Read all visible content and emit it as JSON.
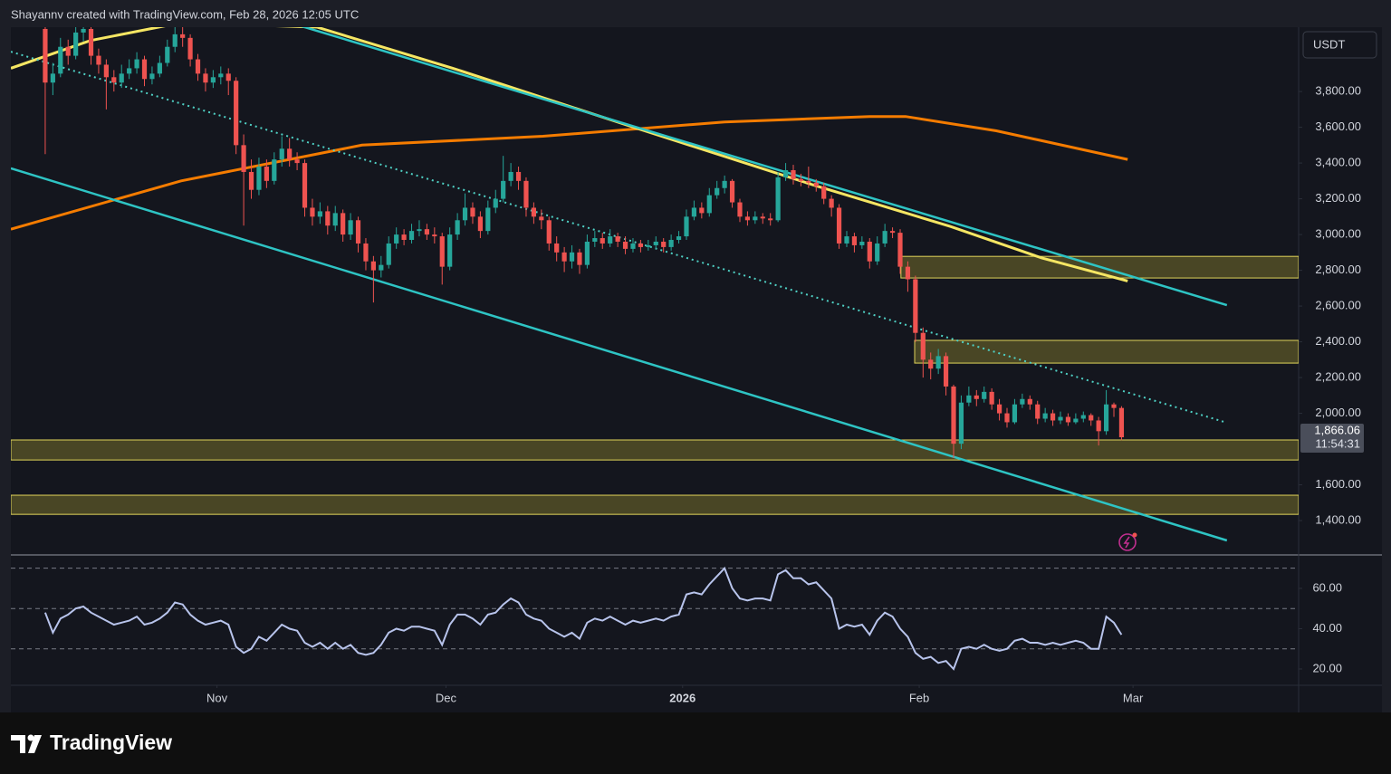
{
  "chart_data": {
    "type": "candlestick",
    "title": "Shayannv created with TradingView.com, Feb 28, 2026 12:05 UTC",
    "currency": "USDT",
    "brand": "TradingView",
    "up_color": "#26a69a",
    "down_color": "#ef5350",
    "open": [
      4150,
      3850,
      3900,
      4050,
      4000,
      4130,
      4150,
      4000,
      3950,
      3880,
      3850,
      3900,
      3930,
      3980,
      3870,
      3900,
      3960,
      4050,
      4120,
      4100,
      3980,
      3900,
      3850,
      3880,
      3900,
      3860,
      3500,
      3350,
      3250,
      3380,
      3300,
      3420,
      3480,
      3420,
      3400,
      3150,
      3100,
      3130,
      3050,
      3120,
      3000,
      3080,
      2950,
      2850,
      2800,
      2830,
      2950,
      3000,
      2970,
      3020,
      3030,
      3000,
      2990,
      2820,
      3000,
      3080,
      3150,
      3100,
      3020,
      3150,
      3200,
      3300,
      3350,
      3300,
      3150,
      3100,
      3080,
      2950,
      2900,
      2850,
      2900,
      2830,
      2960,
      2980,
      2950,
      2990,
      2960,
      2920,
      2950,
      2930,
      2940,
      2960,
      2930,
      2970,
      2990,
      3100,
      3150,
      3120,
      3220,
      3260,
      3300,
      3180,
      3100,
      3080,
      3100,
      3090,
      3080,
      3320,
      3360,
      3310,
      3300,
      3290,
      3270,
      3200,
      3150,
      2950,
      2990,
      2940,
      2960,
      2850,
      2950,
      3020,
      3010,
      2820,
      2750,
      2450,
      2300,
      2250,
      2320,
      2150,
      1830,
      2060,
      2100,
      2080,
      2120,
      2050,
      2000,
      1950,
      2050,
      2080,
      2050,
      1970,
      2000,
      1960,
      1980,
      1950,
      1970,
      1990,
      1960,
      1900,
      2050,
      2030
    ],
    "high": [
      4200,
      3960,
      4100,
      4090,
      4180,
      4210,
      4170,
      4040,
      3980,
      3920,
      3950,
      3980,
      4020,
      4000,
      3940,
      4000,
      4090,
      4170,
      4160,
      4120,
      4010,
      3930,
      3920,
      3940,
      3930,
      3880,
      3560,
      3420,
      3430,
      3420,
      3460,
      3550,
      3540,
      3460,
      3420,
      3200,
      3180,
      3160,
      3160,
      3140,
      3120,
      3100,
      2980,
      2880,
      2880,
      2990,
      3040,
      3030,
      3060,
      3080,
      3060,
      3040,
      3010,
      3040,
      3120,
      3230,
      3180,
      3130,
      3190,
      3250,
      3440,
      3400,
      3380,
      3320,
      3180,
      3140,
      3100,
      2990,
      2930,
      2940,
      2920,
      3000,
      3020,
      3010,
      3030,
      3010,
      2990,
      2980,
      2970,
      2970,
      2990,
      2980,
      3000,
      3020,
      3140,
      3190,
      3180,
      3260,
      3300,
      3330,
      3310,
      3200,
      3130,
      3130,
      3120,
      3120,
      3350,
      3400,
      3390,
      3340,
      3380,
      3310,
      3290,
      3220,
      3170,
      3020,
      3010,
      2990,
      2980,
      2990,
      3060,
      3040,
      3030,
      2850,
      2770,
      2480,
      2340,
      2360,
      2340,
      2160,
      2100,
      2150,
      2130,
      2150,
      2140,
      2080,
      2030,
      2080,
      2110,
      2100,
      2070,
      2030,
      2020,
      2010,
      2000,
      2000,
      2010,
      2000,
      1980,
      2130,
      2060,
      2040
    ],
    "low": [
      3450,
      3780,
      3880,
      3950,
      3980,
      4080,
      3950,
      3900,
      3700,
      3800,
      3820,
      3870,
      3900,
      3830,
      3840,
      3880,
      3940,
      4020,
      4050,
      3940,
      3860,
      3800,
      3820,
      3840,
      3780,
      3450,
      3050,
      3200,
      3220,
      3260,
      3280,
      3380,
      3380,
      3360,
      3100,
      3050,
      3060,
      3000,
      3020,
      2960,
      2970,
      2900,
      2800,
      2620,
      2760,
      2810,
      2920,
      2940,
      2950,
      2990,
      2970,
      2950,
      2720,
      2800,
      2970,
      3050,
      3060,
      2980,
      3000,
      3120,
      3180,
      3270,
      3250,
      3100,
      3060,
      3030,
      2910,
      2850,
      2790,
      2810,
      2780,
      2810,
      2930,
      2920,
      2930,
      2930,
      2890,
      2900,
      2900,
      2910,
      2920,
      2900,
      2910,
      2950,
      2970,
      3080,
      3090,
      3100,
      3200,
      3230,
      3150,
      3070,
      3050,
      3060,
      3060,
      3050,
      3070,
      3300,
      3280,
      3270,
      3260,
      3240,
      3170,
      3100,
      2920,
      2930,
      2900,
      2920,
      2810,
      2830,
      2930,
      2980,
      2780,
      2680,
      2400,
      2200,
      2190,
      2220,
      2100,
      1750,
      1800,
      2040,
      2040,
      2060,
      2020,
      1960,
      1920,
      1940,
      2030,
      2020,
      1940,
      1950,
      1930,
      1940,
      1930,
      1940,
      1950,
      1930,
      1820,
      1880,
      1980,
      1850
    ],
    "close": [
      3850,
      3900,
      4050,
      4000,
      4130,
      4150,
      4000,
      3950,
      3880,
      3850,
      3900,
      3930,
      3980,
      3870,
      3900,
      3960,
      4050,
      4120,
      4100,
      3980,
      3900,
      3850,
      3880,
      3900,
      3860,
      3500,
      3350,
      3250,
      3380,
      3300,
      3420,
      3480,
      3420,
      3400,
      3150,
      3100,
      3130,
      3050,
      3120,
      3000,
      3080,
      2950,
      2850,
      2800,
      2830,
      2950,
      3000,
      2970,
      3020,
      3030,
      3000,
      2990,
      2820,
      3000,
      3080,
      3150,
      3100,
      3020,
      3150,
      3200,
      3300,
      3350,
      3300,
      3150,
      3100,
      3080,
      2950,
      2900,
      2850,
      2900,
      2830,
      2960,
      2980,
      2950,
      2990,
      2960,
      2920,
      2950,
      2930,
      2940,
      2960,
      2930,
      2970,
      2990,
      3100,
      3150,
      3120,
      3220,
      3260,
      3300,
      3180,
      3100,
      3080,
      3100,
      3090,
      3080,
      3320,
      3360,
      3310,
      3300,
      3290,
      3270,
      3200,
      3150,
      2950,
      2990,
      2940,
      2960,
      2850,
      2950,
      3020,
      3010,
      2820,
      2750,
      2450,
      2300,
      2250,
      2320,
      2150,
      1830,
      2060,
      2100,
      2080,
      2120,
      2050,
      2000,
      1950,
      2050,
      2080,
      2050,
      1970,
      2000,
      1960,
      1980,
      1950,
      1970,
      1990,
      1960,
      1900,
      2050,
      2030,
      1866.06
    ],
    "xlim": [
      -4.5,
      164.2
    ],
    "xticks": [
      {
        "value": 22.5,
        "label": "Nov"
      },
      {
        "value": 52.5,
        "label": "Dec"
      },
      {
        "value": 83.5,
        "label": "2026"
      },
      {
        "value": 114.5,
        "label": "Feb"
      },
      {
        "value": 142.5,
        "label": "Mar"
      }
    ],
    "ylim": [
      1213,
      4160
    ],
    "yticks": [
      {
        "value": 1400,
        "label": "1,400.00"
      },
      {
        "value": 1600,
        "label": "1,600.00"
      },
      {
        "value": 2000,
        "label": "2,000.00"
      },
      {
        "value": 2200,
        "label": "2,200.00"
      },
      {
        "value": 2400,
        "label": "2,400.00"
      },
      {
        "value": 2600,
        "label": "2,600.00"
      },
      {
        "value": 2800,
        "label": "2,800.00"
      },
      {
        "value": 3000,
        "label": "3,000.00"
      },
      {
        "value": 3200,
        "label": "3,200.00"
      },
      {
        "value": 3400,
        "label": "3,400.00"
      },
      {
        "value": 3600,
        "label": "3,600.00"
      },
      {
        "value": 3800,
        "label": "3,800.00"
      }
    ],
    "last_price": {
      "value": 1866.06,
      "label": "1,866.06"
    },
    "countdown": "11:54:31",
    "moving_averages": [
      {
        "color": "#f57c00",
        "x": [
          -4.5,
          17.8,
          41.5,
          65.2,
          89,
          108,
          112.7,
          124.6,
          141.8
        ],
        "values": [
          3030,
          3300,
          3500,
          3550,
          3630,
          3660,
          3660,
          3580,
          3420
        ]
      },
      {
        "color": "#f5e663",
        "x": [
          -4.5,
          5.9,
          17.8,
          35.6,
          53.4,
          77.1,
          100.8,
          118.6,
          130.5,
          141.8
        ],
        "values": [
          3930,
          4085,
          4185,
          4160,
          3930,
          3600,
          3275,
          3045,
          2870,
          2740
        ]
      }
    ],
    "trendlines": [
      {
        "color": "#2ec4c4",
        "dashed": false,
        "x": [
          33.2,
          154.8
        ],
        "values": [
          4170,
          2605
        ]
      },
      {
        "color": "#2ec4c4",
        "dashed": false,
        "x": [
          -4.5,
          154.8
        ],
        "values": [
          3370,
          1289
        ]
      },
      {
        "color": "#4fd1c5",
        "dashed": true,
        "x": [
          -4.5,
          154.8
        ],
        "values": [
          4023,
          1947
        ]
      }
    ],
    "zones": [
      {
        "x_start": 112.1,
        "low": 2757,
        "high": 2878
      },
      {
        "x_start": 113.9,
        "low": 2281,
        "high": 2408
      },
      {
        "x_start": -4.5,
        "low": 1739,
        "high": 1851
      },
      {
        "x_start": -4.5,
        "low": 1435,
        "high": 1542
      }
    ],
    "rsi": {
      "color": "#b8c4ec",
      "values": [
        48,
        38,
        45,
        47,
        50,
        51,
        48,
        46,
        44,
        42,
        43,
        44,
        46,
        42,
        43,
        45,
        48,
        53,
        52,
        47,
        44,
        42,
        43,
        44,
        42,
        31,
        28,
        30,
        36,
        34,
        38,
        42,
        40,
        39,
        33,
        31,
        33,
        30,
        33,
        30,
        32,
        28,
        27,
        28,
        32,
        38,
        40,
        39,
        41,
        41,
        40,
        39,
        32,
        42,
        47,
        47,
        45,
        42,
        47,
        48,
        52,
        55,
        53,
        47,
        45,
        44,
        40,
        38,
        36,
        38,
        35,
        43,
        45,
        44,
        46,
        44,
        42,
        44,
        43,
        44,
        45,
        44,
        46,
        47,
        57,
        58,
        57,
        62,
        66,
        70,
        60,
        55,
        54,
        55,
        55,
        54,
        67,
        69,
        65,
        65,
        62,
        63,
        59,
        55,
        40,
        42,
        41,
        42,
        37,
        44,
        48,
        46,
        40,
        36,
        28,
        25,
        26,
        23,
        24,
        20,
        30,
        31,
        30,
        32,
        30,
        29,
        30,
        34,
        35,
        33,
        33,
        32,
        33,
        32,
        33,
        34,
        33,
        30,
        30,
        46,
        43,
        37
      ],
      "ylim": [
        11.9,
        75.7
      ],
      "yticks": [
        {
          "value": 20,
          "label": "20.00"
        },
        {
          "value": 40,
          "label": "40.00"
        },
        {
          "value": 60,
          "label": "60.00"
        }
      ],
      "levels": [
        30,
        50,
        70
      ]
    }
  }
}
